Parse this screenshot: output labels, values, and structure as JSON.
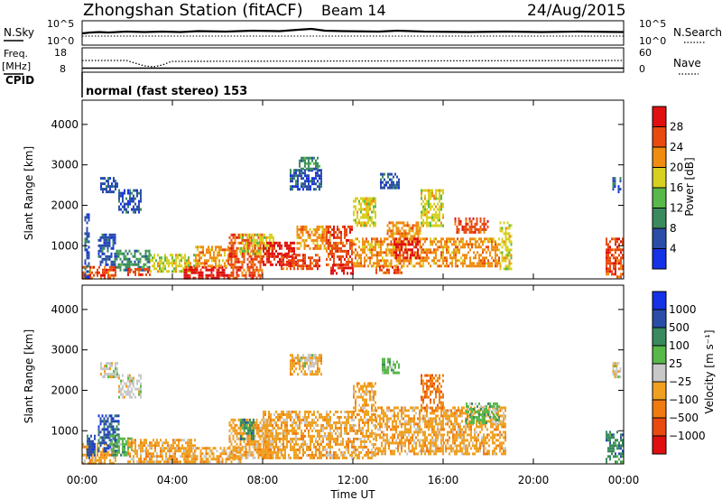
{
  "header": {
    "title": "Zhongshan Station (fitACF)",
    "beam": "Beam 14",
    "date": "24/Aug/2015"
  },
  "strip": {
    "nsky_label": "N.Sky",
    "nsky_tick_top": "10^5",
    "nsky_tick_bottom": "10^0",
    "nsearch_label": "N.Search",
    "nsearch_tick_top": "10^5",
    "nsearch_tick_bottom": "10^0",
    "freq_label": "Freq.",
    "freq_unit": "[MHz]",
    "freq_tick_top": "18",
    "freq_tick_bottom": "8",
    "nave_label": "Nave",
    "nave_tick_top": "60",
    "nave_tick_bottom": "0",
    "cpid_label": "CPID",
    "cpid_value": "normal (fast stereo) 153"
  },
  "colors": {
    "power": [
      "#1432e6",
      "#2a4ea8",
      "#3a8a5e",
      "#58b84a",
      "#d8d020",
      "#f08c10",
      "#e84a10",
      "#e01010"
    ],
    "velocity": [
      "#e01010",
      "#e84a10",
      "#f07a10",
      "#f0a020",
      "#c8c8c8",
      "#58b84a",
      "#3a8a5e",
      "#2a4ea8",
      "#1432e6"
    ]
  },
  "chart_data": [
    {
      "type": "heatmap",
      "panel": "power",
      "xlabel": "",
      "ylabel": "Slant Range [km]",
      "x_ticks": [
        "00:00",
        "04:00",
        "08:00",
        "12:00",
        "16:00",
        "20:00",
        "00:00"
      ],
      "xlim": [
        0,
        24
      ],
      "y_ticks": [
        1000,
        2000,
        3000,
        4000
      ],
      "ylim": [
        180,
        4600
      ],
      "colorbar": {
        "label": "Power [dB]",
        "ticks": [
          "4",
          "8",
          "12",
          "16",
          "20",
          "24",
          "28"
        ],
        "range": [
          0,
          32
        ]
      },
      "regions": [
        {
          "x": [
            0.0,
            1.5
          ],
          "y": [
            200,
            500
          ],
          "level": 6
        },
        {
          "x": [
            0.1,
            0.3
          ],
          "y": [
            200,
            1800
          ],
          "level": 1
        },
        {
          "x": [
            0.7,
            1.5
          ],
          "y": [
            500,
            1300
          ],
          "level": 1
        },
        {
          "x": [
            1.5,
            3.0
          ],
          "y": [
            400,
            900
          ],
          "level": 2
        },
        {
          "x": [
            2.0,
            3.0
          ],
          "y": [
            250,
            450
          ],
          "level": 6
        },
        {
          "x": [
            0.8,
            1.6
          ],
          "y": [
            2300,
            2700
          ],
          "level": 1
        },
        {
          "x": [
            1.6,
            2.6
          ],
          "y": [
            1800,
            2400
          ],
          "level": 1
        },
        {
          "x": [
            3.0,
            5.0
          ],
          "y": [
            350,
            800
          ],
          "level": 4
        },
        {
          "x": [
            4.5,
            6.5
          ],
          "y": [
            200,
            500
          ],
          "level": 7
        },
        {
          "x": [
            5.0,
            6.5
          ],
          "y": [
            500,
            1000
          ],
          "level": 5
        },
        {
          "x": [
            6.5,
            8.0
          ],
          "y": [
            200,
            1300
          ],
          "level": 6
        },
        {
          "x": [
            7.0,
            8.5
          ],
          "y": [
            800,
            1300
          ],
          "level": 4
        },
        {
          "x": [
            8.0,
            9.5
          ],
          "y": [
            500,
            1100
          ],
          "level": 7
        },
        {
          "x": [
            8.8,
            10.5
          ],
          "y": [
            400,
            800
          ],
          "level": 6
        },
        {
          "x": [
            9.5,
            11.0
          ],
          "y": [
            900,
            1500
          ],
          "level": 5
        },
        {
          "x": [
            9.2,
            10.6
          ],
          "y": [
            2400,
            2900
          ],
          "level": 1
        },
        {
          "x": [
            9.6,
            10.5
          ],
          "y": [
            2900,
            3200
          ],
          "level": 2
        },
        {
          "x": [
            10.8,
            12.0
          ],
          "y": [
            500,
            1500
          ],
          "level": 6
        },
        {
          "x": [
            11.0,
            12.0
          ],
          "y": [
            300,
            550
          ],
          "level": 7
        },
        {
          "x": [
            12.0,
            13.0
          ],
          "y": [
            1500,
            2200
          ],
          "level": 4
        },
        {
          "x": [
            12.0,
            13.5
          ],
          "y": [
            500,
            1200
          ],
          "level": 5
        },
        {
          "x": [
            13.5,
            15.0
          ],
          "y": [
            500,
            1600
          ],
          "level": 5
        },
        {
          "x": [
            13.8,
            15.0
          ],
          "y": [
            700,
            1200
          ],
          "level": 7
        },
        {
          "x": [
            13.2,
            14.0
          ],
          "y": [
            2400,
            2800
          ],
          "level": 1
        },
        {
          "x": [
            13.0,
            14.2
          ],
          "y": [
            300,
            500
          ],
          "level": 6
        },
        {
          "x": [
            15.0,
            16.0
          ],
          "y": [
            1500,
            2400
          ],
          "level": 4
        },
        {
          "x": [
            15.0,
            18.5
          ],
          "y": [
            500,
            1200
          ],
          "level": 5
        },
        {
          "x": [
            16.5,
            18.0
          ],
          "y": [
            1300,
            1700
          ],
          "level": 6
        },
        {
          "x": [
            18.5,
            19.0
          ],
          "y": [
            400,
            1600
          ],
          "level": 4
        },
        {
          "x": [
            23.2,
            24.0
          ],
          "y": [
            200,
            1200
          ],
          "level": 6
        },
        {
          "x": [
            23.5,
            23.9
          ],
          "y": [
            2300,
            2700
          ],
          "level": 1
        }
      ]
    },
    {
      "type": "heatmap",
      "panel": "velocity",
      "xlabel": "Time UT",
      "ylabel": "Slant Range [km]",
      "x_ticks": [
        "00:00",
        "04:00",
        "08:00",
        "12:00",
        "16:00",
        "20:00",
        "00:00"
      ],
      "xlim": [
        0,
        24
      ],
      "y_ticks": [
        1000,
        2000,
        3000,
        4000
      ],
      "ylim": [
        180,
        4600
      ],
      "colorbar": {
        "label": "Velocity [m s⁻¹]",
        "ticks": [
          "1000",
          "500",
          "100",
          "25",
          "−25",
          "−100",
          "−500",
          "−1000"
        ]
      },
      "regions": [
        {
          "x": [
            0.0,
            1.5
          ],
          "y": [
            200,
            700
          ],
          "level": 3
        },
        {
          "x": [
            0.2,
            0.6
          ],
          "y": [
            300,
            900
          ],
          "level": 7
        },
        {
          "x": [
            0.7,
            1.6
          ],
          "y": [
            500,
            1400
          ],
          "level": 7
        },
        {
          "x": [
            1.2,
            2.2
          ],
          "y": [
            400,
            900
          ],
          "level": 5
        },
        {
          "x": [
            0.8,
            1.6
          ],
          "y": [
            2300,
            2700
          ],
          "level": 4
        },
        {
          "x": [
            1.6,
            2.6
          ],
          "y": [
            1800,
            2400
          ],
          "level": 4
        },
        {
          "x": [
            2.0,
            5.0
          ],
          "y": [
            250,
            800
          ],
          "level": 3
        },
        {
          "x": [
            4.5,
            7.0
          ],
          "y": [
            200,
            600
          ],
          "level": 3
        },
        {
          "x": [
            6.5,
            8.5
          ],
          "y": [
            300,
            1300
          ],
          "level": 3
        },
        {
          "x": [
            7.0,
            7.6
          ],
          "y": [
            800,
            1300
          ],
          "level": 6
        },
        {
          "x": [
            8.0,
            11.0
          ],
          "y": [
            300,
            1500
          ],
          "level": 3
        },
        {
          "x": [
            9.2,
            10.6
          ],
          "y": [
            2400,
            2900
          ],
          "level": 3
        },
        {
          "x": [
            9.6,
            10.4
          ],
          "y": [
            2600,
            2900
          ],
          "level": 4
        },
        {
          "x": [
            10.8,
            13.0
          ],
          "y": [
            300,
            1500
          ],
          "level": 3
        },
        {
          "x": [
            12.0,
            13.0
          ],
          "y": [
            1500,
            2200
          ],
          "level": 3
        },
        {
          "x": [
            13.2,
            14.0
          ],
          "y": [
            2400,
            2800
          ],
          "level": 5
        },
        {
          "x": [
            13.0,
            16.0
          ],
          "y": [
            400,
            1600
          ],
          "level": 3
        },
        {
          "x": [
            15.0,
            16.0
          ],
          "y": [
            1500,
            2400
          ],
          "level": 2
        },
        {
          "x": [
            16.0,
            18.8
          ],
          "y": [
            400,
            1600
          ],
          "level": 3
        },
        {
          "x": [
            17.0,
            18.5
          ],
          "y": [
            1200,
            1700
          ],
          "level": 5
        },
        {
          "x": [
            23.2,
            24.0
          ],
          "y": [
            200,
            1000
          ],
          "level": 6
        },
        {
          "x": [
            23.5,
            23.9
          ],
          "y": [
            2300,
            2700
          ],
          "level": 4
        }
      ]
    }
  ]
}
